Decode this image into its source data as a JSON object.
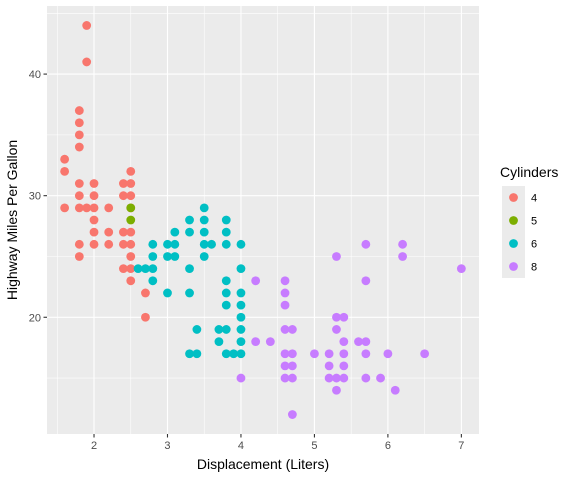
{
  "chart_data": {
    "type": "scatter",
    "xlabel": "Displacement (Liters)",
    "ylabel": "Highway Miles Per Gallon",
    "xlim": [
      1.36,
      7.24
    ],
    "ylim": [
      10.4,
      45.6
    ],
    "x_ticks": [
      2,
      3,
      4,
      5,
      6,
      7
    ],
    "y_ticks": [
      20,
      30,
      40
    ],
    "grid": true,
    "legend_position": "right",
    "legend_title": "Cylinders",
    "series": [
      {
        "name": "4",
        "color": "#F8766D",
        "points": [
          [
            1.6,
            33
          ],
          [
            1.6,
            32
          ],
          [
            1.6,
            29
          ],
          [
            1.8,
            29
          ],
          [
            1.8,
            26
          ],
          [
            1.8,
            25
          ],
          [
            1.8,
            30
          ],
          [
            1.8,
            31
          ],
          [
            1.8,
            34
          ],
          [
            1.8,
            35
          ],
          [
            1.8,
            36
          ],
          [
            1.8,
            37
          ],
          [
            1.9,
            44
          ],
          [
            1.9,
            41
          ],
          [
            1.9,
            29
          ],
          [
            2.0,
            31
          ],
          [
            2.0,
            30
          ],
          [
            2.0,
            29
          ],
          [
            2.0,
            28
          ],
          [
            2.0,
            27
          ],
          [
            2.0,
            26
          ],
          [
            2.2,
            27
          ],
          [
            2.2,
            26
          ],
          [
            2.2,
            29
          ],
          [
            2.4,
            31
          ],
          [
            2.4,
            30
          ],
          [
            2.4,
            27
          ],
          [
            2.4,
            26
          ],
          [
            2.4,
            24
          ],
          [
            2.5,
            32
          ],
          [
            2.5,
            31
          ],
          [
            2.5,
            30
          ],
          [
            2.5,
            29
          ],
          [
            2.5,
            27
          ],
          [
            2.5,
            26
          ],
          [
            2.5,
            25
          ],
          [
            2.5,
            24
          ],
          [
            2.5,
            23
          ],
          [
            2.7,
            22
          ],
          [
            2.7,
            20
          ]
        ]
      },
      {
        "name": "5",
        "color": "#7CAE00",
        "points": [
          [
            2.5,
            29
          ],
          [
            2.5,
            28
          ]
        ]
      },
      {
        "name": "6",
        "color": "#00BFC4",
        "points": [
          [
            2.6,
            24
          ],
          [
            2.7,
            24
          ],
          [
            2.8,
            26
          ],
          [
            2.8,
            25
          ],
          [
            2.8,
            24
          ],
          [
            2.8,
            23
          ],
          [
            3.0,
            26
          ],
          [
            3.0,
            25
          ],
          [
            3.0,
            22
          ],
          [
            3.1,
            27
          ],
          [
            3.1,
            26
          ],
          [
            3.1,
            25
          ],
          [
            3.3,
            28
          ],
          [
            3.3,
            27
          ],
          [
            3.3,
            24
          ],
          [
            3.3,
            22
          ],
          [
            3.3,
            17
          ],
          [
            3.4,
            19
          ],
          [
            3.4,
            17
          ],
          [
            3.5,
            29
          ],
          [
            3.5,
            28
          ],
          [
            3.5,
            27
          ],
          [
            3.5,
            26
          ],
          [
            3.5,
            25
          ],
          [
            3.6,
            26
          ],
          [
            3.7,
            19
          ],
          [
            3.7,
            18
          ],
          [
            3.8,
            28
          ],
          [
            3.8,
            27
          ],
          [
            3.8,
            26
          ],
          [
            3.8,
            23
          ],
          [
            3.8,
            22
          ],
          [
            3.8,
            21
          ],
          [
            3.8,
            19
          ],
          [
            3.8,
            17
          ],
          [
            3.9,
            17
          ],
          [
            4.0,
            26
          ],
          [
            4.0,
            24
          ],
          [
            4.0,
            22
          ],
          [
            4.0,
            21
          ],
          [
            4.0,
            20
          ],
          [
            4.0,
            19
          ],
          [
            4.0,
            18
          ],
          [
            4.0,
            17
          ]
        ]
      },
      {
        "name": "8",
        "color": "#C77CFF",
        "points": [
          [
            4.0,
            15
          ],
          [
            4.2,
            23
          ],
          [
            4.2,
            18
          ],
          [
            4.4,
            18
          ],
          [
            4.6,
            23
          ],
          [
            4.6,
            22
          ],
          [
            4.6,
            21
          ],
          [
            4.6,
            19
          ],
          [
            4.6,
            17
          ],
          [
            4.6,
            16
          ],
          [
            4.6,
            15
          ],
          [
            4.7,
            19
          ],
          [
            4.7,
            17
          ],
          [
            4.7,
            16
          ],
          [
            4.7,
            15
          ],
          [
            4.7,
            12
          ],
          [
            5.0,
            17
          ],
          [
            5.2,
            17
          ],
          [
            5.2,
            16
          ],
          [
            5.2,
            15
          ],
          [
            5.3,
            25
          ],
          [
            5.3,
            20
          ],
          [
            5.3,
            19
          ],
          [
            5.3,
            15
          ],
          [
            5.3,
            14
          ],
          [
            5.4,
            20
          ],
          [
            5.4,
            18
          ],
          [
            5.4,
            17
          ],
          [
            5.4,
            16
          ],
          [
            5.4,
            15
          ],
          [
            5.6,
            18
          ],
          [
            5.7,
            26
          ],
          [
            5.7,
            23
          ],
          [
            5.7,
            18
          ],
          [
            5.7,
            17
          ],
          [
            5.7,
            15
          ],
          [
            5.9,
            15
          ],
          [
            6.0,
            17
          ],
          [
            6.1,
            14
          ],
          [
            6.2,
            26
          ],
          [
            6.2,
            25
          ],
          [
            6.5,
            17
          ],
          [
            7.0,
            24
          ]
        ]
      }
    ]
  }
}
